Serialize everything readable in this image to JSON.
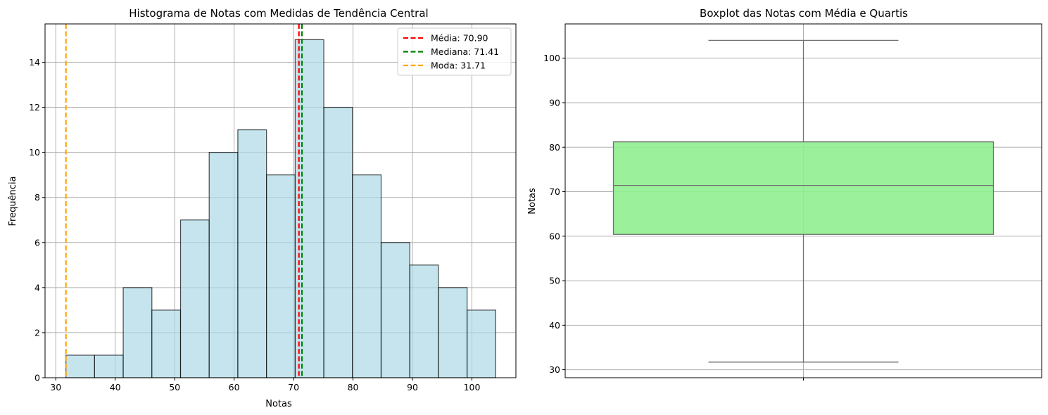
{
  "chart_data": [
    {
      "type": "bar",
      "subtype": "histogram",
      "title": "Histograma de Notas com Medidas de Tendência Central",
      "xlabel": "Notas",
      "ylabel": "Frequência",
      "xlim": [
        28.2,
        107.4
      ],
      "ylim": [
        0,
        15.7
      ],
      "xticks": [
        30,
        40,
        50,
        60,
        70,
        80,
        90,
        100
      ],
      "yticks": [
        0,
        2,
        4,
        6,
        8,
        10,
        12,
        14
      ],
      "grid": true,
      "bin_edges": [
        31.71,
        36.53,
        41.35,
        46.17,
        50.99,
        55.81,
        60.63,
        65.45,
        70.27,
        75.09,
        79.91,
        84.73,
        89.55,
        94.37,
        99.19,
        104.01
      ],
      "values": [
        1,
        1,
        4,
        3,
        7,
        10,
        11,
        9,
        15,
        12,
        9,
        6,
        5,
        4,
        3
      ],
      "bar_color": "#add8e6",
      "vlines": [
        {
          "label": "Média: 70.90",
          "value": 70.9,
          "color": "#ff0000"
        },
        {
          "label": "Mediana: 71.41",
          "value": 71.41,
          "color": "#008000"
        },
        {
          "label": "Moda: 31.71",
          "value": 31.71,
          "color": "#ffa500"
        }
      ],
      "legend_position": "top-right"
    },
    {
      "type": "boxplot",
      "title": "Boxplot das Notas com Média e Quartis",
      "ylabel": "Notas",
      "ylim": [
        28.2,
        107.7
      ],
      "yticks": [
        30,
        40,
        50,
        60,
        70,
        80,
        90,
        100
      ],
      "grid": true,
      "box_color": "#90ee90",
      "stats": {
        "min": 31.71,
        "q1": 60.4,
        "median": 71.41,
        "q3": 81.2,
        "max": 104.01
      }
    }
  ]
}
